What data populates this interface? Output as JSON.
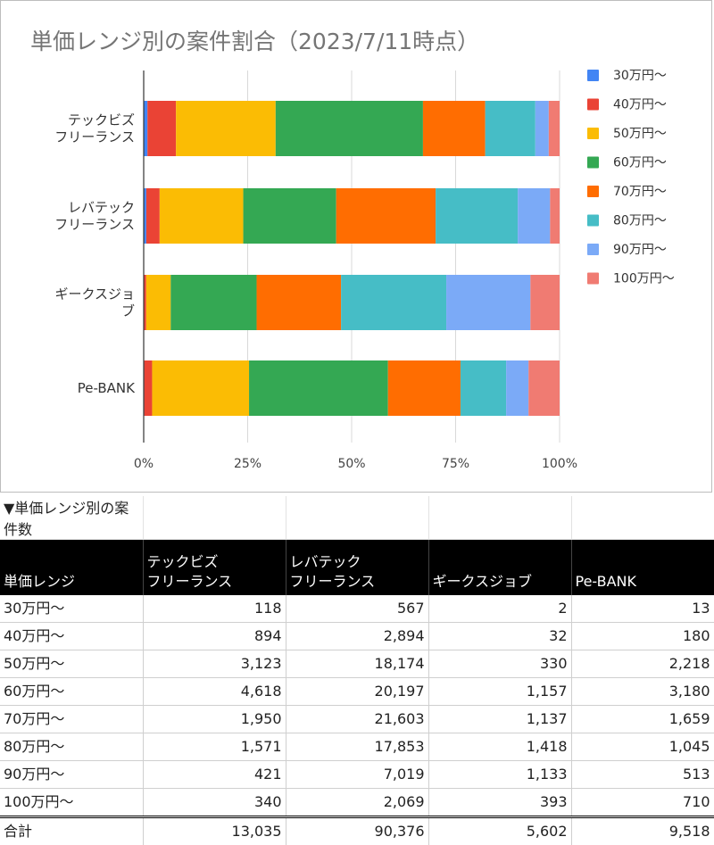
{
  "chart_data": {
    "type": "bar",
    "orientation": "horizontal",
    "stacked": "percent",
    "title": "単価レンジ別の案件割合（2023/7/11時点）",
    "categories": [
      "テックビズ\nフリーランス",
      "レバテック\nフリーランス",
      "ギークスジョ\nブ",
      "Pe-BANK"
    ],
    "x_ticks": [
      "0%",
      "25%",
      "50%",
      "75%",
      "100%"
    ],
    "xlim": [
      0,
      100
    ],
    "grid": true,
    "legend_position": "right",
    "series": [
      {
        "name": "30万円〜",
        "color": "#4285F4",
        "values": [
          118,
          567,
          2,
          13
        ]
      },
      {
        "name": "40万円〜",
        "color": "#EA4335",
        "values": [
          894,
          2894,
          32,
          180
        ]
      },
      {
        "name": "50万円〜",
        "color": "#FBBC04",
        "values": [
          3123,
          18174,
          330,
          2218
        ]
      },
      {
        "name": "60万円〜",
        "color": "#34A853",
        "values": [
          4618,
          20197,
          1157,
          3180
        ]
      },
      {
        "name": "70万円〜",
        "color": "#FF6D01",
        "values": [
          1950,
          21603,
          1137,
          1659
        ]
      },
      {
        "name": "80万円〜",
        "color": "#46BDC6",
        "values": [
          1571,
          17853,
          1418,
          1045
        ]
      },
      {
        "name": "90万円〜",
        "color": "#7BAAF7",
        "values": [
          421,
          7019,
          1133,
          513
        ]
      },
      {
        "name": "100万円〜",
        "color": "#F07B72",
        "values": [
          340,
          2069,
          393,
          710
        ]
      }
    ]
  },
  "table": {
    "caption": "▼単価レンジ別の案件数",
    "headers": [
      "単価レンジ",
      "テックビズ\nフリーランス",
      "レバテック\nフリーランス",
      "ギークスジョブ",
      "Pe-BANK"
    ],
    "rows": [
      [
        "30万円〜",
        "118",
        "567",
        "2",
        "13"
      ],
      [
        "40万円〜",
        "894",
        "2,894",
        "32",
        "180"
      ],
      [
        "50万円〜",
        "3,123",
        "18,174",
        "330",
        "2,218"
      ],
      [
        "60万円〜",
        "4,618",
        "20,197",
        "1,157",
        "3,180"
      ],
      [
        "70万円〜",
        "1,950",
        "21,603",
        "1,137",
        "1,659"
      ],
      [
        "80万円〜",
        "1,571",
        "17,853",
        "1,418",
        "1,045"
      ],
      [
        "90万円〜",
        "421",
        "7,019",
        "1,133",
        "513"
      ],
      [
        "100万円〜",
        "340",
        "2,069",
        "393",
        "710"
      ]
    ],
    "total": [
      "合計",
      "13,035",
      "90,376",
      "5,602",
      "9,518"
    ]
  }
}
